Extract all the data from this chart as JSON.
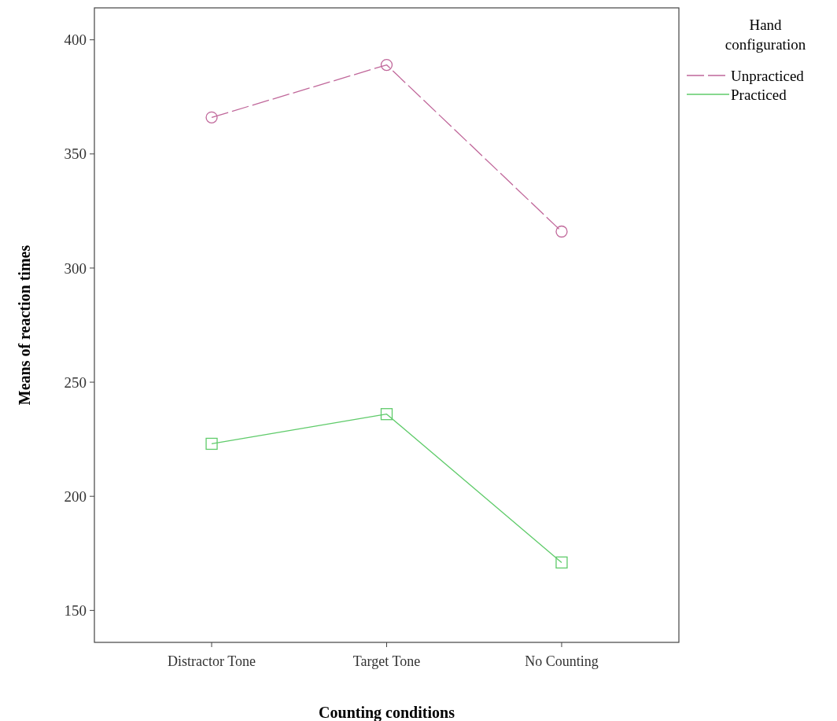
{
  "chart_data": {
    "type": "line",
    "xlabel": "Counting conditions",
    "ylabel": "Means of reaction times",
    "legend_title": "Hand configuration",
    "categories": [
      "Distractor Tone",
      "Target Tone",
      "No Counting"
    ],
    "series": [
      {
        "name": "Unpracticed",
        "color": "#c0679a",
        "values": [
          366,
          389,
          316
        ],
        "marker": "circle",
        "line_style": "dashed"
      },
      {
        "name": "Practiced",
        "color": "#5fcb6a",
        "values": [
          223,
          236,
          171
        ],
        "marker": "square",
        "line_style": "solid"
      }
    ],
    "ylim": [
      136,
      414
    ],
    "yticks": [
      150,
      200,
      250,
      300,
      350,
      400
    ],
    "grid": false,
    "legend": "top right"
  }
}
